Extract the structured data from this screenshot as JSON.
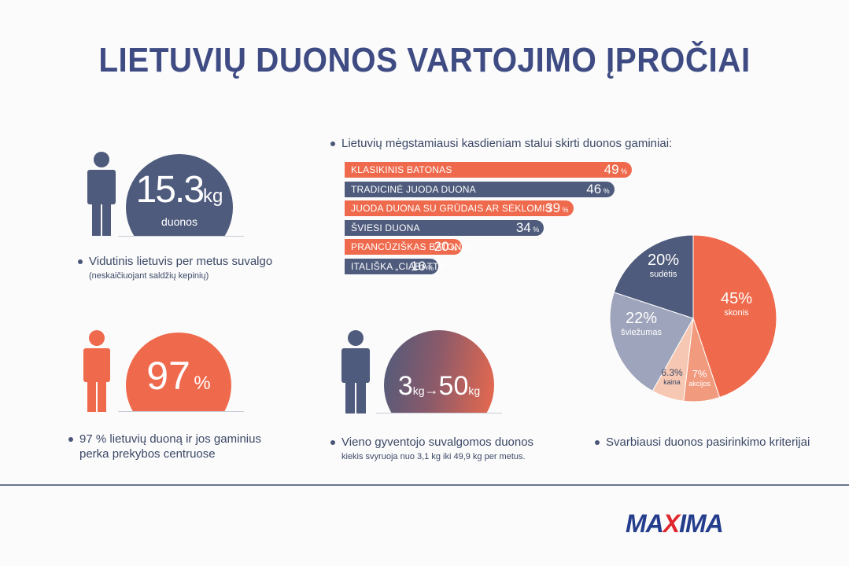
{
  "title": "LIETUVIŲ DUONOS VARTOJIMO ĮPROČIAI",
  "colors": {
    "navy": "#4f5b7c",
    "orange": "#ef6a4c",
    "title_blue": "#3f4c84",
    "light_gray_blue": "#9ea4bb",
    "peach": "#f6c7b2",
    "light_orange": "#f19a7e"
  },
  "stat_consumption": {
    "value": "15.3",
    "unit": "kg",
    "sub": "duonos",
    "caption": "Vidutinis lietuvis per metus suvalgo",
    "subcaption": "(neskaičiuojant saldžių kepinių)",
    "icon": "person-icon"
  },
  "stat_supermarket": {
    "value": "97",
    "unit": "%",
    "caption_line1": "97 % lietuvių duoną ir jos gaminius",
    "caption_line2": "perka prekybos centruose",
    "icon": "person-icon"
  },
  "stat_range": {
    "from": "3",
    "from_unit": "kg",
    "arrow": "→",
    "to": "50",
    "to_unit": "kg",
    "caption": "Vieno gyventojo suvalgomos duonos",
    "subcaption": "kiekis svyruoja nuo 3,1 kg iki 49,9 kg per metus.",
    "icon": "person-icon"
  },
  "bar_section": {
    "heading": "Lietuvių mėgstamiausi kasdieniam stalui skirti duonos gaminiai:"
  },
  "pie_section": {
    "caption": "Svarbiausi duonos pasirinkimo kriterijai"
  },
  "chart_data": [
    {
      "type": "bar",
      "orientation": "horizontal",
      "categories": [
        "KLASIKINIS BATONAS",
        "TRADICINĖ JUODA DUONA",
        "JUODA DUONA SU GRŪDAIS AR SĖKLOMIS",
        "ŠVIESI DUONA",
        "PRANCŪZIŠKAS BATONAS",
        "ITALIŠKA „CIABATTA“"
      ],
      "values": [
        49,
        46,
        39,
        34,
        20,
        16
      ],
      "value_labels": [
        "49",
        "46",
        "39",
        "34",
        "20",
        "16"
      ],
      "unit": "%",
      "bar_colors": [
        "#ef6a4c",
        "#4f5b7c",
        "#ef6a4c",
        "#4f5b7c",
        "#ef6a4c",
        "#4f5b7c"
      ],
      "title": "Lietuvių mėgstamiausi kasdieniam stalui skirti duonos gaminiai:"
    },
    {
      "type": "pie",
      "slices": [
        {
          "label": "skonis",
          "value": 45,
          "display": "45%",
          "color": "#ef6a4c"
        },
        {
          "label": "akcijos",
          "value": 7,
          "display": "7%",
          "color": "#f19a7e"
        },
        {
          "label": "kaina",
          "value": 6.3,
          "display": "6.3%",
          "color": "#f6c7b2"
        },
        {
          "label": "šviežumas",
          "value": 22,
          "display": "22%",
          "color": "#9ea4bb"
        },
        {
          "label": "sudėtis",
          "value": 20,
          "display": "20%",
          "color": "#4f5b7c"
        }
      ],
      "title": "Svarbiausi duonos pasirinkimo kriterijai"
    }
  ],
  "logo": {
    "part1": "MA",
    "part2": "X",
    "part3": "IMA"
  }
}
